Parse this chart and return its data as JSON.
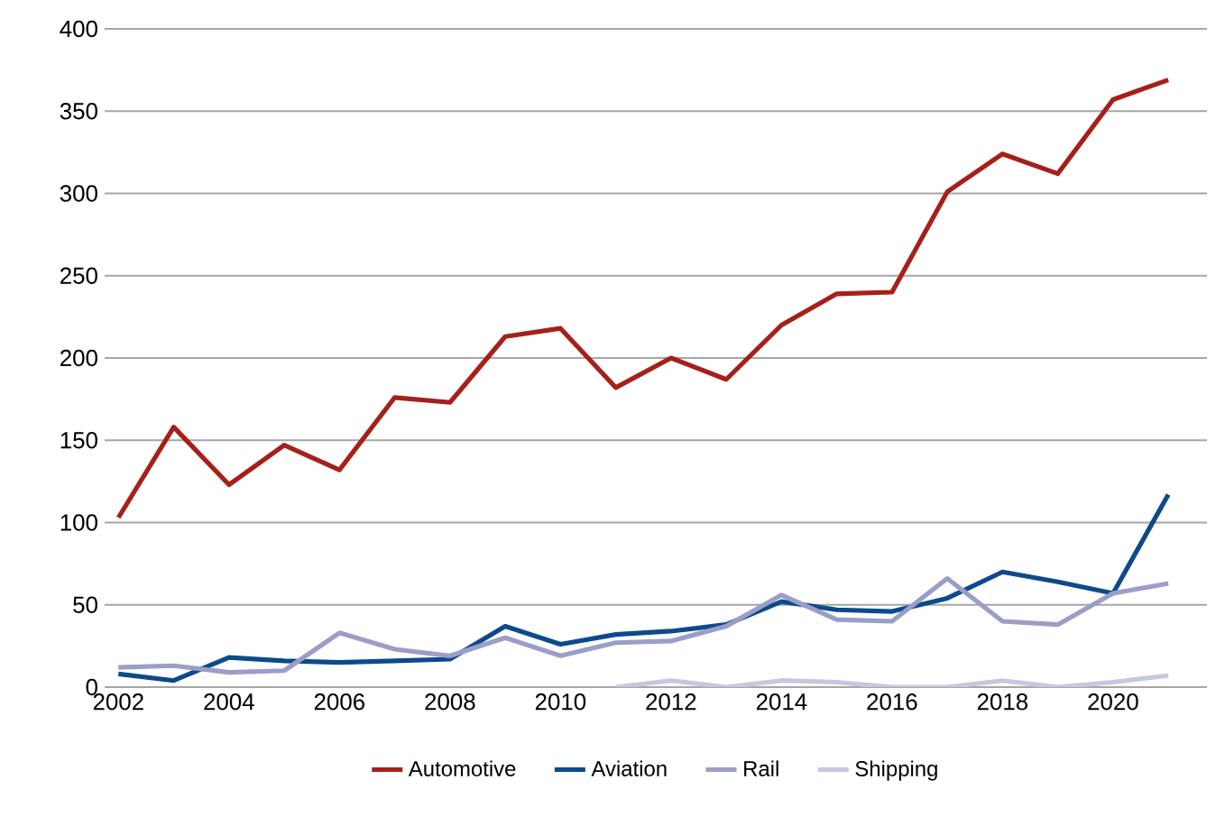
{
  "chart_data": {
    "type": "line",
    "categories": [
      "2002",
      null,
      "2004",
      null,
      "2006",
      null,
      "2008",
      null,
      "2010",
      null,
      "2012",
      null,
      "2014",
      null,
      "2016",
      null,
      "2018",
      null,
      "2020",
      null
    ],
    "series": [
      {
        "name": "Automotive",
        "color": "#a6201a",
        "values": [
          103,
          158,
          123,
          147,
          132,
          176,
          173,
          213,
          218,
          182,
          200,
          187,
          220,
          239,
          240,
          301,
          324,
          312,
          357,
          369
        ]
      },
      {
        "name": "Aviation",
        "color": "#0d4a8c",
        "values": [
          8,
          4,
          18,
          16,
          15,
          16,
          17,
          37,
          26,
          32,
          34,
          38,
          52,
          47,
          46,
          54,
          70,
          64,
          57,
          117
        ]
      },
      {
        "name": "Rail",
        "color": "#9a9ec8",
        "values": [
          12,
          13,
          9,
          10,
          33,
          23,
          19,
          30,
          19,
          27,
          28,
          37,
          56,
          41,
          40,
          66,
          40,
          38,
          57,
          63
        ]
      },
      {
        "name": "Shipping",
        "color": "#c6c8e2",
        "values": [
          null,
          null,
          null,
          null,
          null,
          null,
          null,
          null,
          null,
          0,
          4,
          0,
          4,
          3,
          0,
          0,
          4,
          0,
          3,
          7
        ]
      }
    ],
    "ylim": [
      0,
      400
    ],
    "yticks": [
      0,
      50,
      100,
      150,
      200,
      250,
      300,
      350,
      400
    ],
    "grid": "y",
    "legend": "bottom",
    "marker": "none",
    "line_style": "solid"
  }
}
